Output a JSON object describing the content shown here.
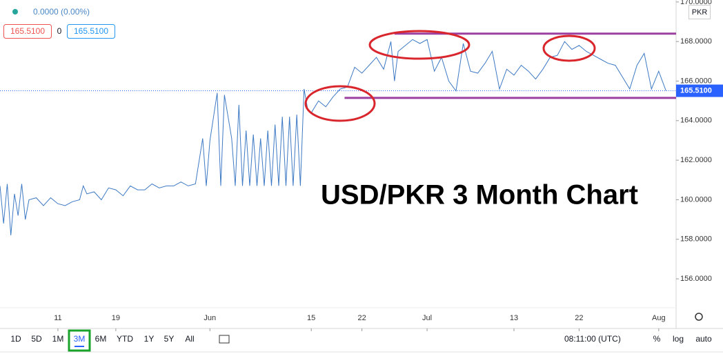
{
  "chart_data": {
    "type": "line",
    "title": "USD/PKR 3 Month Chart",
    "legend_text": "0.0000 (0.00%)",
    "price_boxes": [
      "165.5100",
      "0",
      "165.5100"
    ],
    "currency": "PKR",
    "last_price": {
      "value": 165.51,
      "label": "165.5100"
    },
    "x": [
      3,
      3.5,
      4,
      4.5,
      5,
      5.5,
      6,
      6.5,
      7,
      8,
      9,
      10,
      11,
      12,
      13,
      14,
      14.5,
      15,
      16,
      17,
      18,
      19,
      20,
      21,
      22,
      23,
      24,
      25,
      26,
      27,
      28,
      29,
      30,
      31,
      31.5,
      32,
      33,
      33.5,
      34,
      35,
      35.5,
      36,
      36.5,
      37,
      37.5,
      38,
      38.5,
      39,
      39.5,
      40,
      40.5,
      41,
      41.5,
      42,
      42.5,
      43,
      43.5,
      44,
      44.5,
      45,
      45.5,
      46,
      47,
      48,
      49,
      50,
      51,
      52,
      53,
      54,
      55,
      56,
      57,
      57.5,
      58,
      59,
      60,
      61,
      62,
      63,
      64,
      65,
      66,
      67,
      68,
      69,
      70,
      71,
      72,
      73,
      74,
      75,
      76,
      77,
      78,
      79,
      80,
      81,
      82,
      83,
      84,
      85,
      86,
      87,
      88,
      89,
      90,
      91,
      92,
      93,
      94,
      95
    ],
    "series": [
      {
        "name": "USD/PKR",
        "color": "#3d79c4",
        "values": [
          160.7,
          158.8,
          160.8,
          158.2,
          160.3,
          159.2,
          160.8,
          159.0,
          160.0,
          160.1,
          159.7,
          160.1,
          159.8,
          159.7,
          159.9,
          160.0,
          160.7,
          160.3,
          160.4,
          160.0,
          160.6,
          160.5,
          160.2,
          160.7,
          160.5,
          160.5,
          160.8,
          160.6,
          160.7,
          160.7,
          160.9,
          160.7,
          160.8,
          163.1,
          160.7,
          163.0,
          165.4,
          160.7,
          165.3,
          163.1,
          160.7,
          164.8,
          160.7,
          163.5,
          160.7,
          163.3,
          160.7,
          163.1,
          160.7,
          163.5,
          160.7,
          163.8,
          160.7,
          164.2,
          160.7,
          164.2,
          160.7,
          164.3,
          160.7,
          165.6,
          164.6,
          164.4,
          165.0,
          164.7,
          165.2,
          165.6,
          165.7,
          166.7,
          166.4,
          166.8,
          167.2,
          166.6,
          168.0,
          166.0,
          167.5,
          167.8,
          168.1,
          167.9,
          168.1,
          166.5,
          167.2,
          166.0,
          165.5,
          167.9,
          166.5,
          166.4,
          166.9,
          167.5,
          165.6,
          166.6,
          166.3,
          166.8,
          166.5,
          166.1,
          166.6,
          167.2,
          167.3,
          168.0,
          167.6,
          167.8,
          167.5,
          167.3,
          167.1,
          166.9,
          166.8,
          166.2,
          165.6,
          166.8,
          167.4,
          165.6,
          166.5,
          165.51
        ]
      }
    ],
    "levels": [
      {
        "value": 168.4,
        "x_start": 57.5,
        "color": "#9b3fa0"
      },
      {
        "value": 165.15,
        "x_start": 50.6,
        "color": "#9b3fa0"
      }
    ],
    "xlim": [
      3,
      96.4
    ],
    "xticks": [
      11,
      19,
      {
        "value": 32,
        "label": "Jun"
      },
      {
        "value": 46,
        "label": "15"
      },
      {
        "value": 53,
        "label": "22"
      },
      {
        "value": 62,
        "label": "Jul"
      },
      {
        "value": 74,
        "label": "13"
      },
      {
        "value": 83,
        "label": "22"
      },
      {
        "value": 94,
        "label": "Aug"
      }
    ],
    "ylim": [
      153.7,
      170.1
    ],
    "yticks": [
      {
        "value": 156,
        "label": "156.0000"
      },
      {
        "value": 158,
        "label": "158.0000"
      },
      {
        "value": 160,
        "label": "160.0000"
      },
      {
        "value": 162,
        "label": "162.0000"
      },
      {
        "value": 164,
        "label": "164.0000"
      },
      {
        "value": 166,
        "label": "166.0000"
      },
      {
        "value": 168,
        "label": "168.0000"
      },
      {
        "value": 170,
        "label": "170.0000"
      }
    ],
    "grid": false
  },
  "toolbar": {
    "ranges": [
      "1D",
      "5D",
      "1M",
      "3M",
      "6M",
      "YTD",
      "1Y",
      "5Y",
      "All"
    ],
    "active_range": 3,
    "time": "08:11:00 (UTC)",
    "options": [
      "%",
      "log",
      "auto"
    ]
  }
}
